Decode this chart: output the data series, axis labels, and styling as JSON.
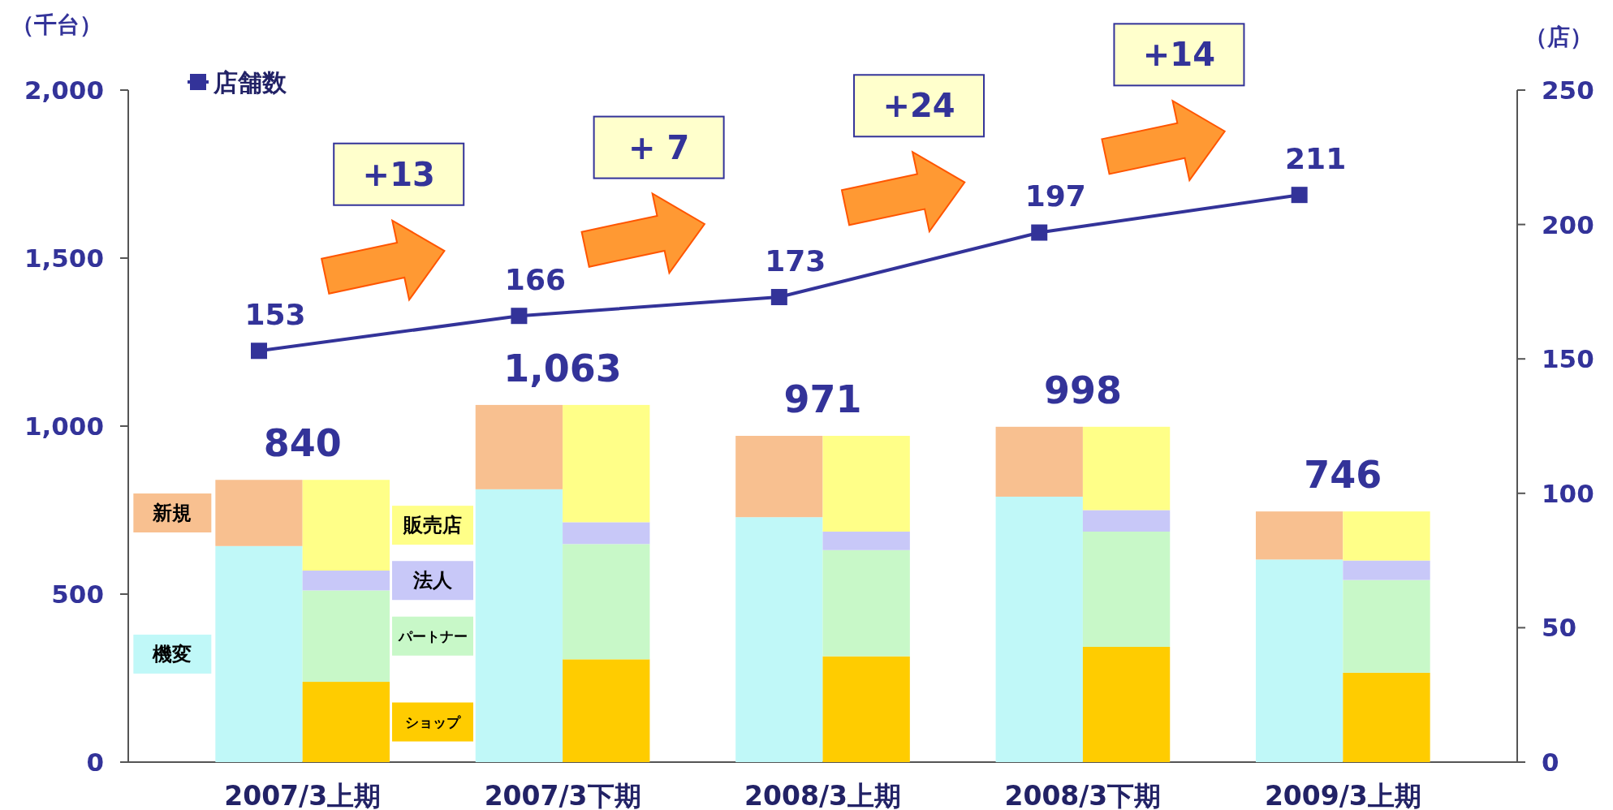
{
  "chart_data": [
    {
      "type": "bar",
      "stacked": true,
      "ylabel": "（千台）",
      "y2label": "（店）",
      "categories": [
        "2007/3上期",
        "2007/3下期",
        "2008/3上期",
        "2008/3下期",
        "2009/3上期"
      ],
      "series": [
        {
          "name": "機変",
          "color": "#c0f8f8",
          "values": [
            643,
            812,
            729,
            790,
            603
          ]
        },
        {
          "name": "新規",
          "color": "#f8c090",
          "values": [
            197,
            251,
            242,
            208,
            143
          ]
        },
        {
          "name": "店舗数",
          "type": "line",
          "axis": "y2",
          "color": "#333399",
          "values": [
            153,
            166,
            173,
            197,
            211
          ],
          "value_labels": [
            "153",
            "166",
            "173",
            "197",
            "211"
          ]
        }
      ],
      "totals": [
        "840",
        "1,063",
        "971",
        "998",
        "746"
      ],
      "annotations": [
        "+13",
        "+ 7",
        "+24",
        "+14"
      ],
      "ylim": [
        0,
        2000
      ],
      "yticks": [
        0,
        500,
        {
          "value": 1000,
          "label": "1,000"
        },
        {
          "value": 1500,
          "label": "1,500"
        },
        {
          "value": 2000,
          "label": "2,000"
        }
      ],
      "y2lim": [
        0,
        250
      ],
      "y2ticks": [
        0,
        50,
        100,
        150,
        200,
        250
      ],
      "marker": "square",
      "legend": "top left"
    },
    {
      "type": "bar",
      "stacked": true,
      "categories": [
        null,
        null,
        null,
        null,
        null
      ],
      "series": [
        {
          "name": "ショップ",
          "color": "#ffcc00",
          "values": [
            239,
            306,
            315,
            343,
            266
          ]
        },
        {
          "name": "パートナー",
          "color": "#c8f8c8",
          "values": [
            272,
            343,
            316,
            343,
            276
          ]
        },
        {
          "name": "法人",
          "color": "#c8c8f8",
          "values": [
            59,
            65,
            55,
            64,
            58
          ]
        },
        {
          "name": "販売店",
          "color": "#ffff88",
          "values": [
            270,
            349,
            285,
            248,
            146
          ]
        }
      ],
      "ylim": [
        0,
        2000
      ],
      "tick_labels": false
    }
  ]
}
